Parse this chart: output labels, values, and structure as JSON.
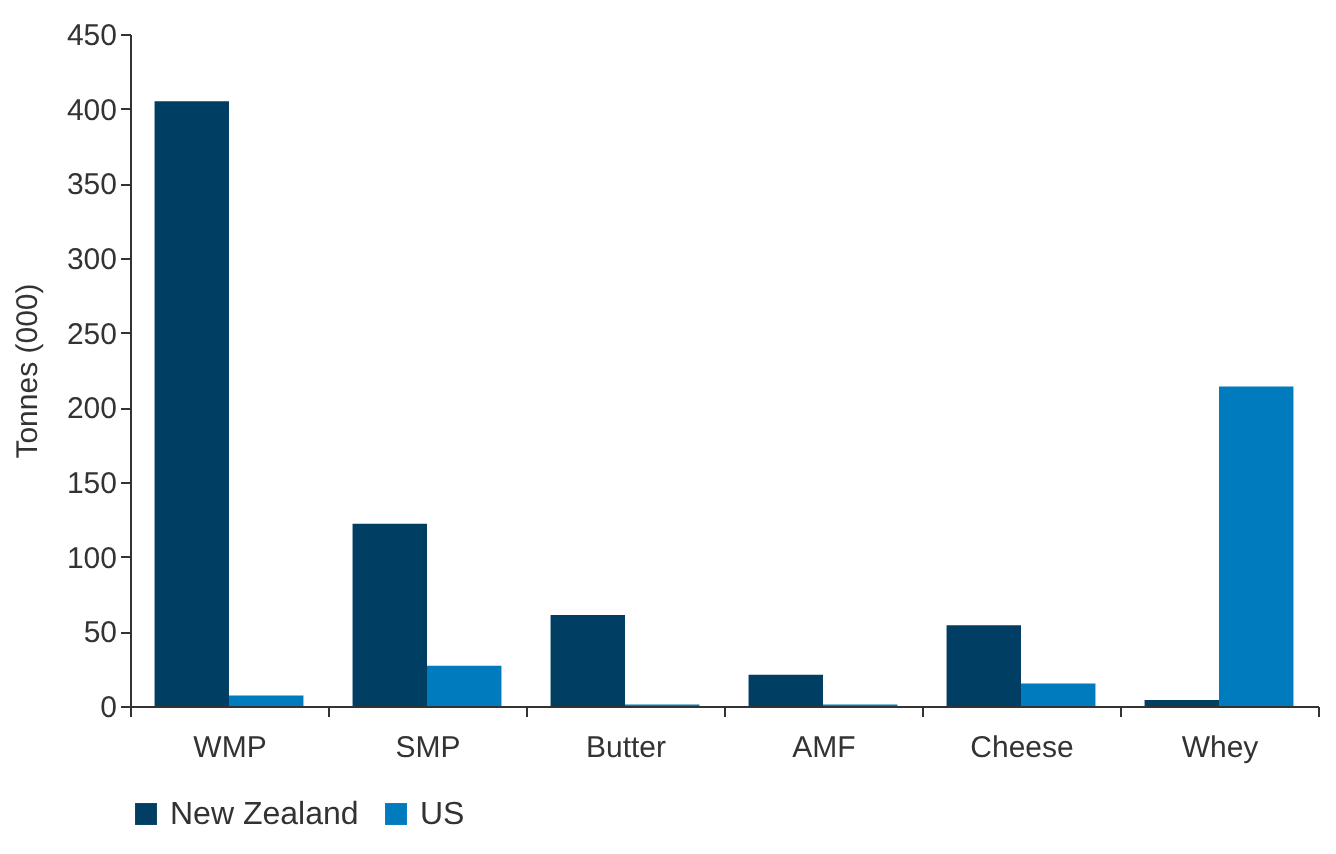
{
  "chart_data": {
    "type": "bar",
    "ylabel": "Tonnes (000)",
    "categories": [
      "WMP",
      "SMP",
      "Butter",
      "AMF",
      "Cheese",
      "Whey"
    ],
    "series": [
      {
        "name": "New Zealand",
        "color": "#003f63",
        "values": [
          405,
          122,
          61,
          21,
          54,
          4
        ]
      },
      {
        "name": "US",
        "color": "#007bbd",
        "values": [
          7,
          27,
          1,
          1,
          15,
          214
        ]
      }
    ],
    "ylim": [
      0,
      450
    ],
    "yticks": [
      0,
      50,
      100,
      150,
      200,
      250,
      300,
      350,
      400,
      450
    ],
    "grid": false,
    "legend": "bottom"
  }
}
